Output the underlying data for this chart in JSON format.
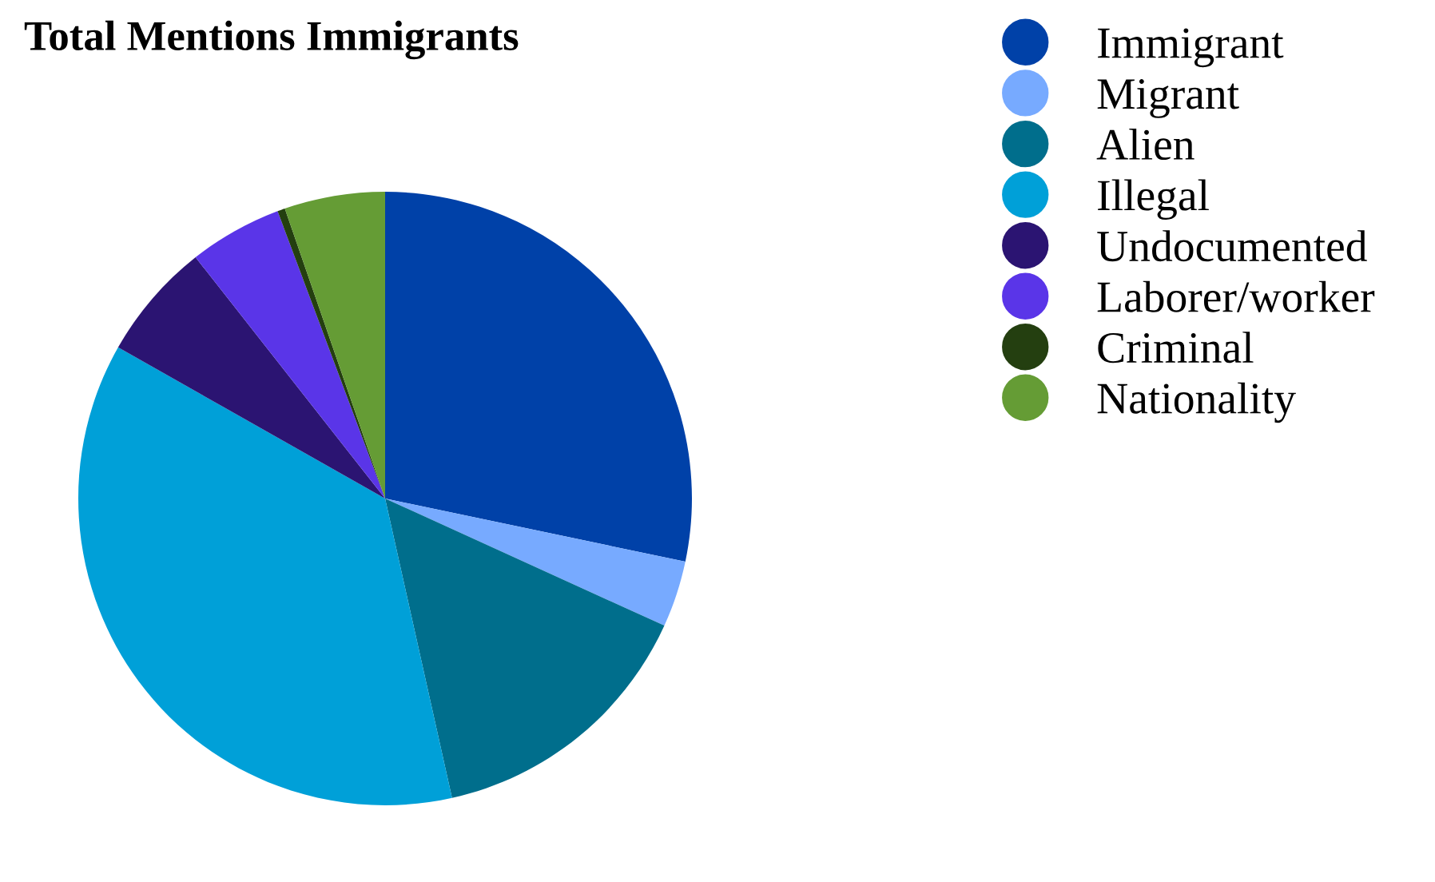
{
  "chart_data": {
    "type": "pie",
    "title": "Total Mentions Immigrants",
    "categories": [
      "Immigrant",
      "Migrant",
      "Alien",
      "Illegal",
      "Undocumented",
      "Laborer/worker",
      "Criminal",
      "Nationality"
    ],
    "values": [
      28.3,
      3.5,
      14.7,
      36.7,
      6.2,
      4.9,
      0.4,
      5.3
    ],
    "colors": [
      "#0041a8",
      "#77aaff",
      "#006e8c",
      "#00a0d8",
      "#2b1472",
      "#5a35e8",
      "#243f10",
      "#659c35"
    ],
    "legend": "right"
  }
}
